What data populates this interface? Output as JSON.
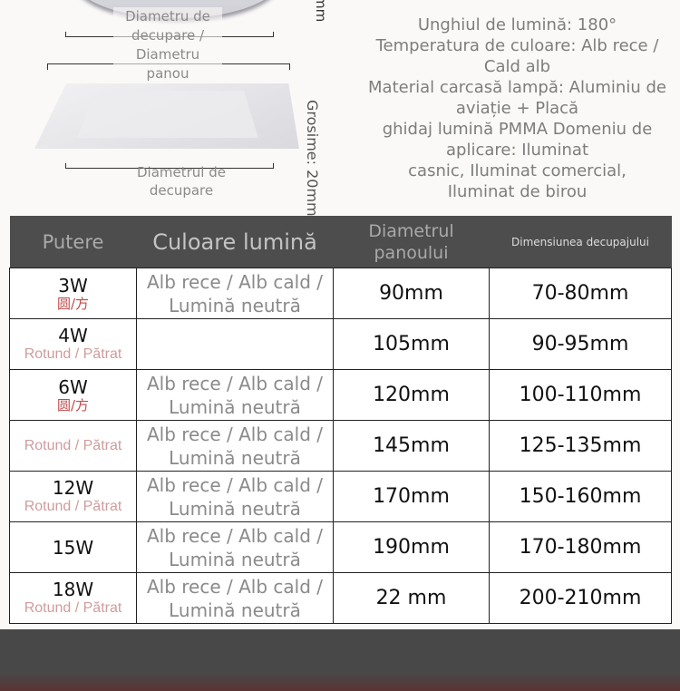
{
  "diagram": {
    "cutout_panel_label": "Diametru de decupare / Diametru panou",
    "cutout_label": "Diametrul de decupare",
    "thickness_label": "Grosime: 20mm",
    "top_fragment": "mm"
  },
  "features": [
    "Unghiul de lumină: 180°",
    "Temperatura de culoare: Alb rece / Cald alb",
    "Material carcasă lampă: Aluminiu de aviație + Placă",
    "ghidaj lumină PMMA   Domeniu de aplicare: Iluminat",
    "casnic, Iluminat comercial,",
    "Iluminat de birou"
  ],
  "table": {
    "headers": [
      "Putere",
      "Culoare lumină",
      "Diametrul panoului",
      "Dimensiunea decupajului"
    ],
    "rows": [
      {
        "power": "3W",
        "shape": "圆/方",
        "color": "Alb rece / Alb cald / Lumină neutră",
        "panel": "90mm",
        "cutout": "70-80mm"
      },
      {
        "power": "4W",
        "shape": "",
        "color": "",
        "panel": "105mm",
        "cutout": "90-95mm"
      },
      {
        "power": "6W",
        "shape": "圆/方",
        "color": "Alb rece / Alb cald / Lumină neutră",
        "panel": "120mm",
        "cutout": "100-110mm"
      },
      {
        "power": "",
        "shape": "",
        "color": "Alb rece / Alb cald / Lumină neutră",
        "panel": "145mm",
        "cutout": "125-135mm"
      },
      {
        "power": "12W",
        "shape": "",
        "color": "Alb rece / Alb cald / Lumină neutră",
        "panel": "170mm",
        "cutout": "150-160mm"
      },
      {
        "power": "15W",
        "shape": "",
        "color": "Alb rece / Alb cald / Lumină neutră",
        "panel": "190mm",
        "cutout": "170-180mm"
      },
      {
        "power": "18W",
        "shape": "",
        "color": "Alb rece / Alb cald / Lumină neutră",
        "panel": "22 mm",
        "cutout": "200-210mm"
      }
    ],
    "shape_overlays": [
      "Rotund / Pătrat",
      "Rotund / Pătrat",
      "Rotund / Pătrat",
      "Rotund / Pătrat"
    ]
  },
  "colors": {
    "header_bg": "#4d4d4d",
    "shape_red": "#c24a4a",
    "overlay_pink": "#cf9c9c"
  }
}
